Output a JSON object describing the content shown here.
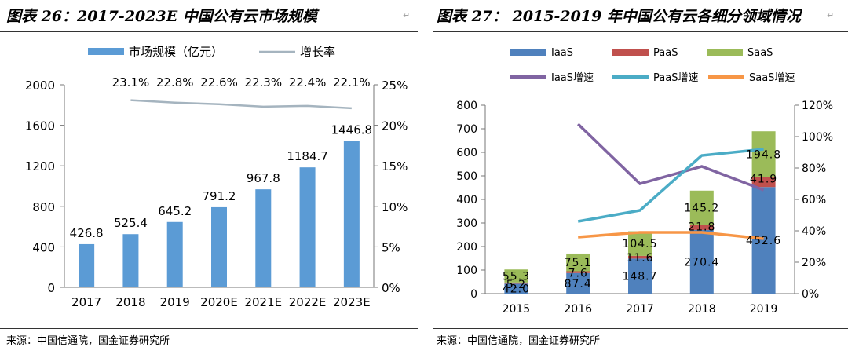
{
  "left": {
    "title": "图表 26：2017-2023E 中国公有云市场规模",
    "source": "来源：中国信通院，国金证券研究所",
    "colors": {
      "bar": "#5B9BD5",
      "line": "#A5B4BF"
    },
    "chart_data": {
      "type": "bar",
      "categories": [
        "2017",
        "2018",
        "2019",
        "2020E",
        "2021E",
        "2022E",
        "2023E"
      ],
      "series": [
        {
          "name": "市场规模（亿元）",
          "type": "bar",
          "axis": "left",
          "values": [
            426.8,
            525.4,
            645.2,
            791.2,
            967.8,
            1184.7,
            1446.8
          ]
        },
        {
          "name": "增长率",
          "type": "line",
          "axis": "right",
          "values": [
            null,
            23.1,
            22.8,
            22.6,
            22.3,
            22.4,
            22.1
          ],
          "labels": [
            "",
            "23.1%",
            "22.8%",
            "22.6%",
            "22.3%",
            "22.4%",
            "22.1%"
          ]
        }
      ],
      "bar_labels": [
        "426.8",
        "525.4",
        "645.2",
        "791.2",
        "967.8",
        "1184.7",
        "1446.8"
      ],
      "ylim": [
        0,
        2000
      ],
      "yticks": [
        "0",
        "400",
        "800",
        "1200",
        "1600",
        "2000"
      ],
      "y2lim": [
        0,
        25
      ],
      "y2ticks": [
        "0%",
        "5%",
        "10%",
        "15%",
        "20%",
        "25%"
      ],
      "legend_position": "top",
      "grid": false
    }
  },
  "right": {
    "title": "图表 27： 2015-2019 年中国公有云各细分领域情况",
    "source": "来源：中国信通院，国金证券研究所",
    "colors": {
      "iaas": "#4F81BD",
      "paas": "#C0504D",
      "saas": "#9BBB59",
      "iaas_growth": "#8064A2",
      "paas_growth": "#4BACC6",
      "saas_growth": "#F79646"
    },
    "chart_data": {
      "type": "bar",
      "stacked": true,
      "categories": [
        "2015",
        "2016",
        "2017",
        "2018",
        "2019"
      ],
      "series": [
        {
          "name": "IaaS",
          "type": "bar",
          "axis": "left",
          "values": [
            42.0,
            87.4,
            148.7,
            270.4,
            452.6
          ],
          "labels": [
            "42.0",
            "87.4",
            "148.7",
            "270.4",
            "452.6"
          ]
        },
        {
          "name": "PaaS",
          "type": "bar",
          "axis": "left",
          "values": [
            5.2,
            7.6,
            11.6,
            21.8,
            41.9
          ],
          "labels": [
            "5.2",
            "7.6",
            "11.6",
            "21.8",
            "41.9"
          ]
        },
        {
          "name": "SaaS",
          "type": "bar",
          "axis": "left",
          "values": [
            55.3,
            75.1,
            104.5,
            145.2,
            194.8
          ],
          "labels": [
            "55.3",
            "75.1",
            "104.5",
            "145.2",
            "194.8"
          ]
        },
        {
          "name": "IaaS增速",
          "type": "line",
          "axis": "right",
          "values": [
            null,
            108,
            70,
            81,
            66
          ]
        },
        {
          "name": "PaaS增速",
          "type": "line",
          "axis": "right",
          "values": [
            null,
            46,
            53,
            88,
            92
          ]
        },
        {
          "name": "SaaS增速",
          "type": "line",
          "axis": "right",
          "values": [
            null,
            36,
            39,
            39,
            35
          ]
        }
      ],
      "ylim": [
        0,
        800
      ],
      "yticks": [
        "0",
        "100",
        "200",
        "300",
        "400",
        "500",
        "600",
        "700",
        "800"
      ],
      "y2lim": [
        0,
        120
      ],
      "y2ticks": [
        "0%",
        "20%",
        "40%",
        "60%",
        "80%",
        "100%",
        "120%"
      ],
      "legend_position": "top",
      "grid": false
    }
  }
}
